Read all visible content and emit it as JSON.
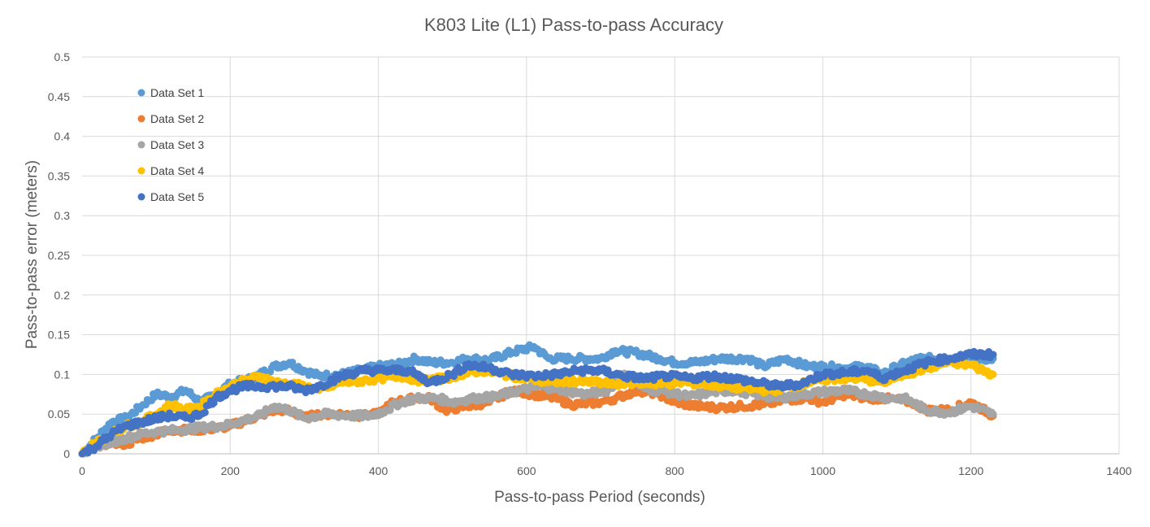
{
  "chart_data": {
    "type": "scatter",
    "title": "K803 Lite (L1) Pass-to-pass Accuracy",
    "xlabel": "Pass-to-pass Period (seconds)",
    "ylabel": "Pass-to-pass error (meters)",
    "xlim": [
      0,
      1400
    ],
    "ylim": [
      0,
      0.5
    ],
    "xticks": [
      0,
      200,
      400,
      600,
      800,
      1000,
      1200,
      1400
    ],
    "yticks": [
      0,
      0.05,
      0.1,
      0.15,
      0.2,
      0.25,
      0.3,
      0.35,
      0.4,
      0.45,
      0.5
    ],
    "xtick_labels": [
      "0",
      "200",
      "400",
      "600",
      "800",
      "1000",
      "1200",
      "1400"
    ],
    "ytick_labels": [
      "0",
      "0.05",
      "0.1",
      "0.15",
      "0.2",
      "0.25",
      "0.3",
      "0.35",
      "0.4",
      "0.45",
      "0.5"
    ],
    "grid": true,
    "legend_position": "top-left inside",
    "series": [
      {
        "name": "Data Set 1",
        "color": "#5B9BD5",
        "x": [
          0,
          20,
          40,
          60,
          80,
          100,
          120,
          140,
          160,
          180,
          200,
          230,
          260,
          280,
          300,
          320,
          350,
          380,
          400,
          430,
          450,
          470,
          500,
          520,
          550,
          580,
          610,
          630,
          660,
          700,
          720,
          750,
          780,
          800,
          830,
          860,
          900,
          920,
          950,
          980,
          1000,
          1030,
          1060,
          1080,
          1100,
          1130,
          1160,
          1200,
          1230
        ],
        "y": [
          0,
          0.02,
          0.04,
          0.045,
          0.06,
          0.075,
          0.072,
          0.08,
          0.065,
          0.075,
          0.088,
          0.095,
          0.11,
          0.115,
          0.105,
          0.098,
          0.1,
          0.106,
          0.11,
          0.113,
          0.12,
          0.115,
          0.115,
          0.12,
          0.118,
          0.128,
          0.135,
          0.12,
          0.12,
          0.12,
          0.13,
          0.127,
          0.12,
          0.115,
          0.115,
          0.12,
          0.12,
          0.11,
          0.12,
          0.11,
          0.11,
          0.108,
          0.11,
          0.1,
          0.11,
          0.12,
          0.12,
          0.12,
          0.12
        ]
      },
      {
        "name": "Data Set 2",
        "color": "#ED7D31",
        "x": [
          0,
          20,
          40,
          60,
          80,
          100,
          120,
          150,
          180,
          200,
          230,
          260,
          280,
          300,
          320,
          350,
          380,
          400,
          420,
          450,
          470,
          490,
          520,
          550,
          580,
          610,
          640,
          660,
          700,
          720,
          750,
          780,
          800,
          830,
          860,
          890,
          920,
          950,
          980,
          1000,
          1030,
          1060,
          1080,
          1100,
          1120,
          1140,
          1170,
          1200,
          1230
        ],
        "y": [
          0,
          0.01,
          0.015,
          0.012,
          0.02,
          0.025,
          0.03,
          0.03,
          0.032,
          0.035,
          0.045,
          0.055,
          0.055,
          0.045,
          0.05,
          0.05,
          0.048,
          0.05,
          0.065,
          0.07,
          0.07,
          0.055,
          0.06,
          0.065,
          0.08,
          0.075,
          0.07,
          0.062,
          0.065,
          0.07,
          0.08,
          0.075,
          0.065,
          0.06,
          0.058,
          0.06,
          0.062,
          0.068,
          0.07,
          0.065,
          0.075,
          0.07,
          0.07,
          0.068,
          0.065,
          0.055,
          0.055,
          0.065,
          0.048
        ]
      },
      {
        "name": "Data Set 3",
        "color": "#A5A5A5",
        "x": [
          0,
          20,
          40,
          60,
          80,
          100,
          130,
          160,
          190,
          210,
          240,
          260,
          280,
          300,
          330,
          360,
          390,
          410,
          430,
          450,
          480,
          500,
          530,
          560,
          590,
          620,
          650,
          680,
          710,
          730,
          760,
          790,
          820,
          850,
          880,
          910,
          940,
          970,
          1000,
          1030,
          1060,
          1090,
          1110,
          1140,
          1170,
          1200,
          1230
        ],
        "y": [
          0,
          0.01,
          0.015,
          0.02,
          0.025,
          0.028,
          0.03,
          0.033,
          0.035,
          0.04,
          0.048,
          0.06,
          0.055,
          0.045,
          0.05,
          0.048,
          0.048,
          0.055,
          0.065,
          0.07,
          0.07,
          0.065,
          0.07,
          0.072,
          0.08,
          0.085,
          0.08,
          0.075,
          0.08,
          0.1,
          0.082,
          0.078,
          0.072,
          0.078,
          0.08,
          0.075,
          0.07,
          0.075,
          0.078,
          0.08,
          0.075,
          0.07,
          0.07,
          0.055,
          0.052,
          0.06,
          0.05
        ]
      },
      {
        "name": "Data Set 4",
        "color": "#FFC000",
        "x": [
          0,
          20,
          40,
          60,
          80,
          100,
          120,
          140,
          160,
          180,
          200,
          220,
          240,
          260,
          280,
          300,
          320,
          350,
          380,
          400,
          430,
          460,
          490,
          510,
          540,
          570,
          600,
          630,
          660,
          690,
          720,
          750,
          780,
          810,
          840,
          870,
          900,
          930,
          960,
          990,
          1020,
          1050,
          1080,
          1110,
          1140,
          1170,
          1200,
          1230
        ],
        "y": [
          0,
          0.015,
          0.025,
          0.035,
          0.04,
          0.05,
          0.062,
          0.055,
          0.06,
          0.075,
          0.085,
          0.092,
          0.098,
          0.09,
          0.088,
          0.085,
          0.08,
          0.09,
          0.092,
          0.095,
          0.098,
          0.092,
          0.095,
          0.1,
          0.105,
          0.1,
          0.095,
          0.09,
          0.092,
          0.09,
          0.088,
          0.09,
          0.088,
          0.09,
          0.088,
          0.085,
          0.082,
          0.08,
          0.085,
          0.092,
          0.095,
          0.095,
          0.09,
          0.1,
          0.108,
          0.115,
          0.112,
          0.1
        ]
      },
      {
        "name": "Data Set 5",
        "color": "#4472C4",
        "x": [
          0,
          20,
          40,
          60,
          80,
          100,
          120,
          140,
          160,
          180,
          200,
          220,
          240,
          260,
          280,
          300,
          320,
          350,
          380,
          410,
          440,
          470,
          500,
          520,
          550,
          580,
          610,
          640,
          670,
          700,
          730,
          760,
          790,
          820,
          850,
          880,
          910,
          940,
          970,
          1000,
          1030,
          1060,
          1080,
          1110,
          1140,
          1170,
          1200,
          1230
        ],
        "y": [
          0,
          0.01,
          0.025,
          0.035,
          0.04,
          0.045,
          0.048,
          0.045,
          0.05,
          0.07,
          0.08,
          0.085,
          0.085,
          0.085,
          0.085,
          0.08,
          0.085,
          0.098,
          0.105,
          0.105,
          0.105,
          0.09,
          0.1,
          0.112,
          0.108,
          0.1,
          0.098,
          0.1,
          0.105,
          0.105,
          0.098,
          0.095,
          0.098,
          0.095,
          0.098,
          0.095,
          0.09,
          0.085,
          0.088,
          0.1,
          0.102,
          0.105,
          0.095,
          0.105,
          0.115,
          0.12,
          0.125,
          0.125
        ]
      }
    ]
  }
}
